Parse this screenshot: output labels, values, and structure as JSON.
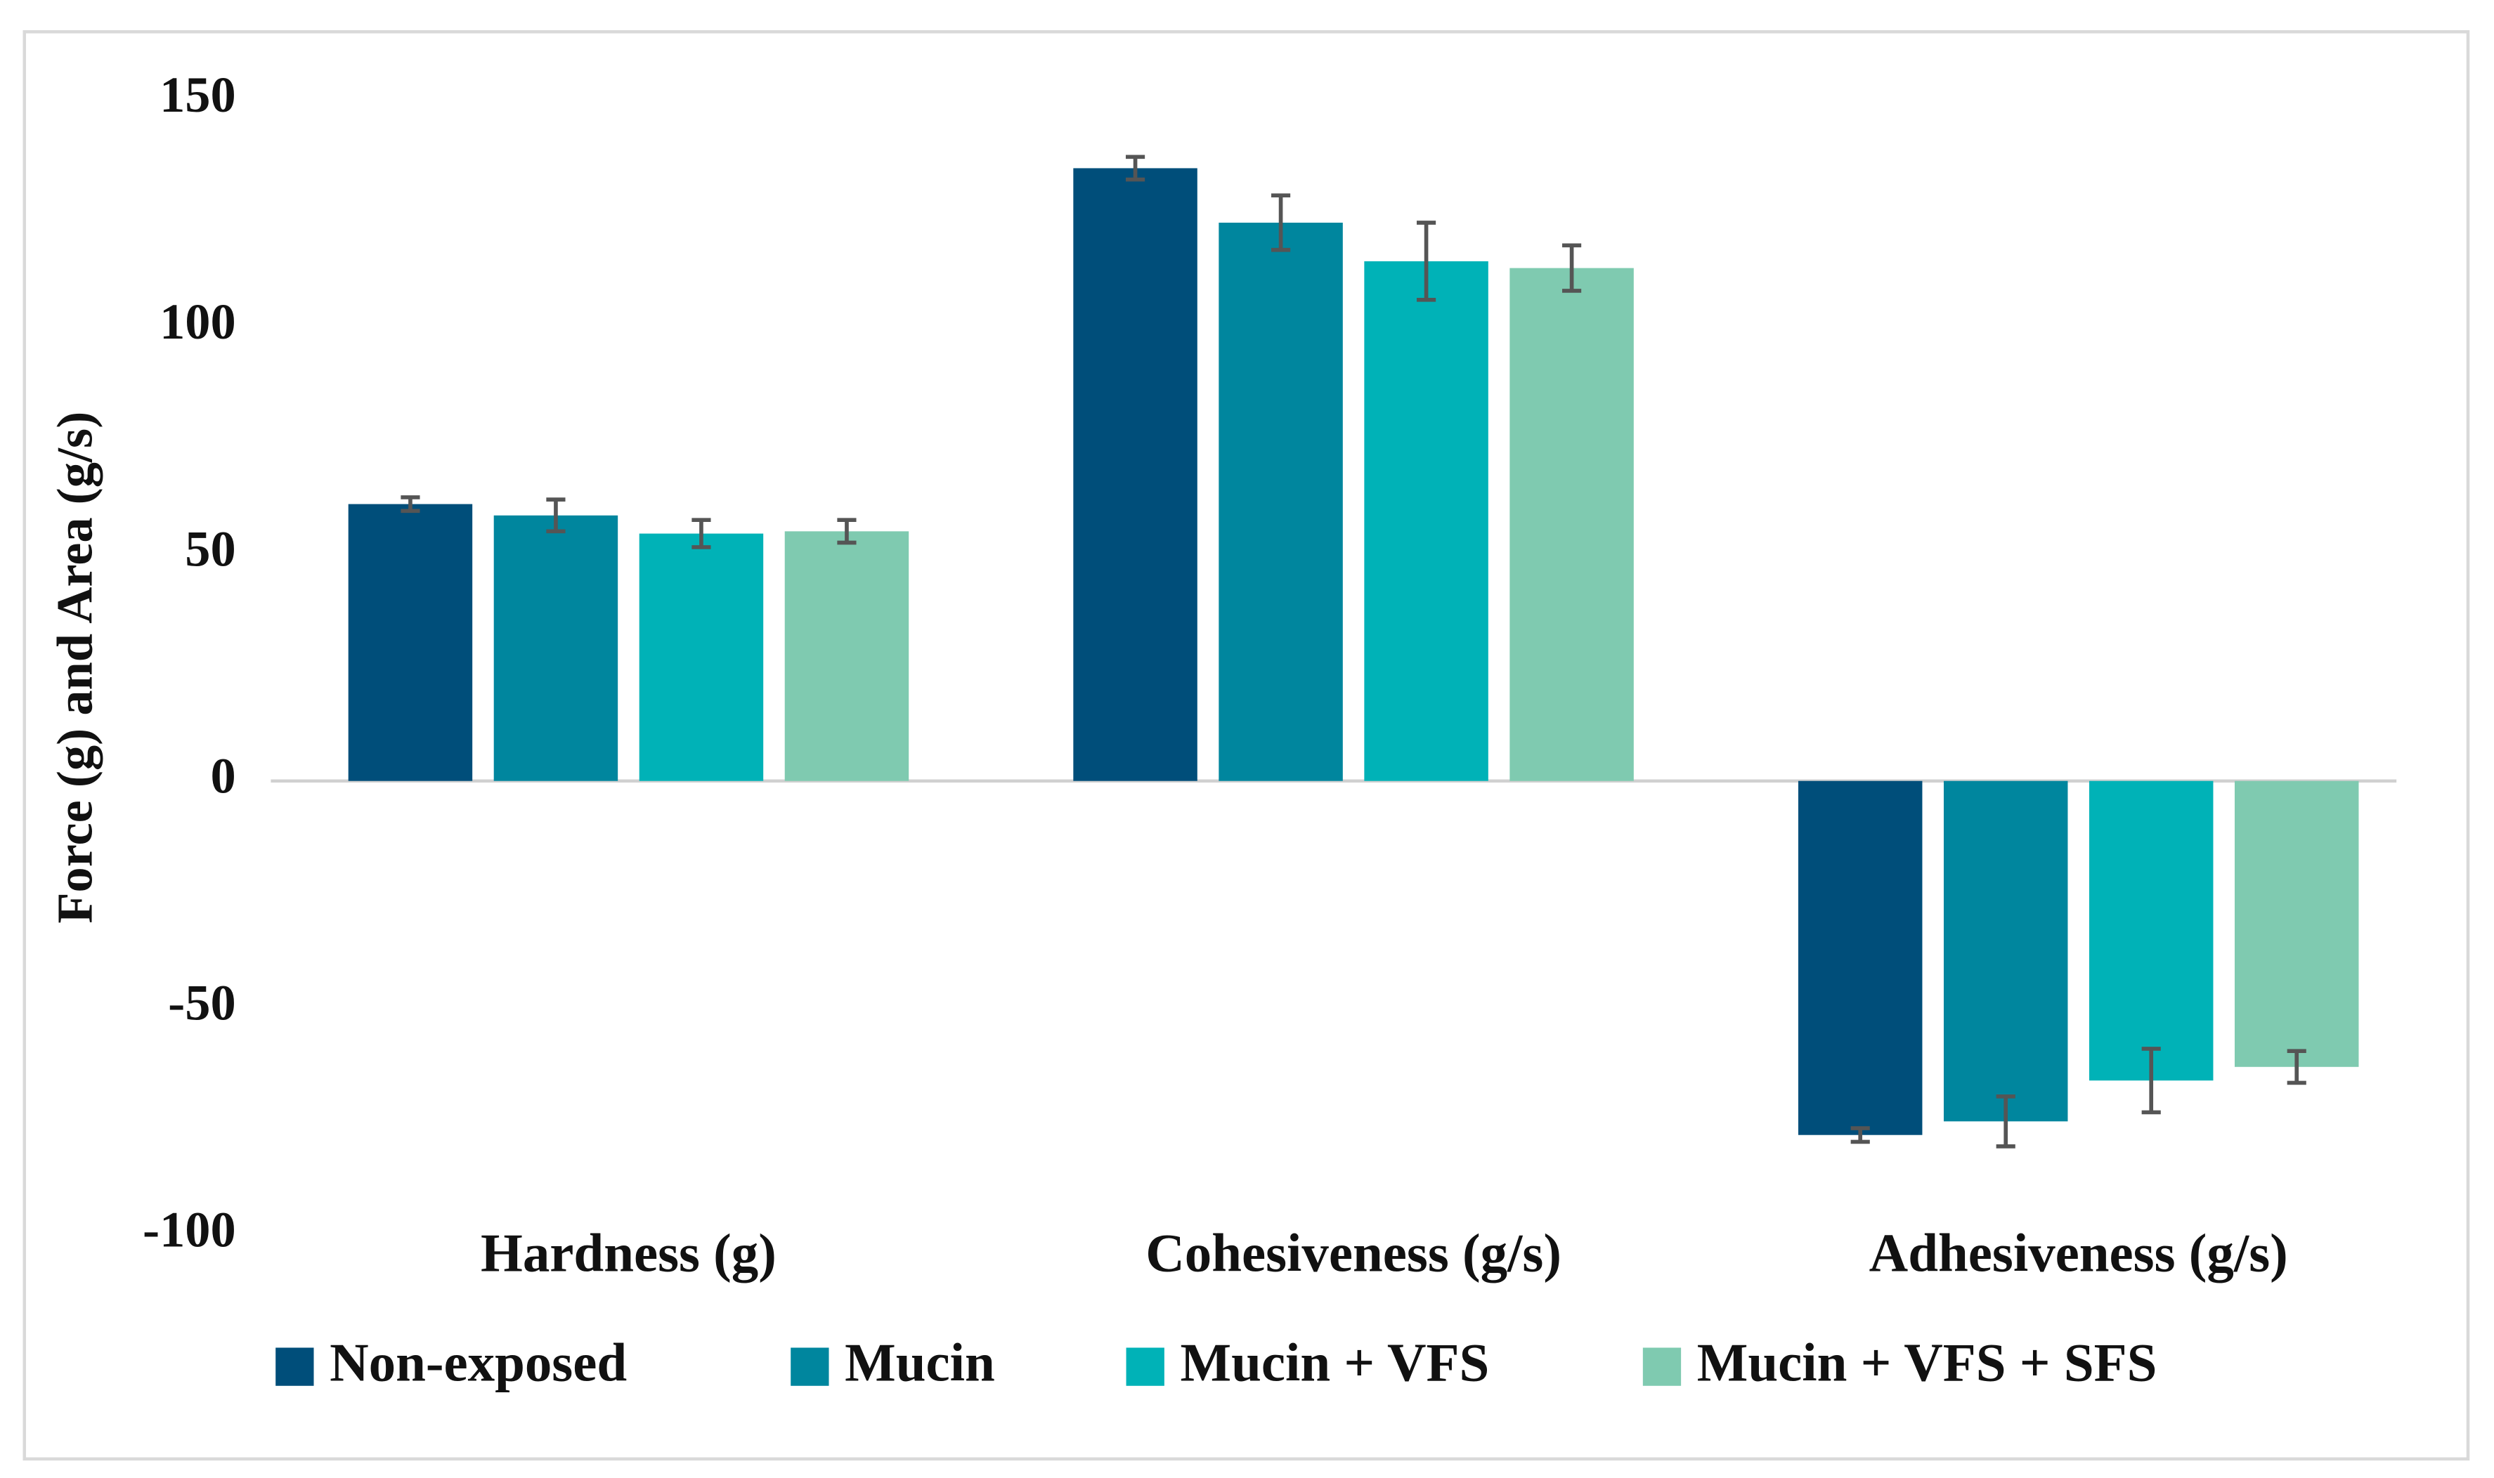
{
  "chart_data": {
    "type": "bar",
    "y_label": "Force (g) and Area (g/s)",
    "categories": [
      "Hardness (g)",
      "Cohesiveness (g/s)",
      "Adhesiveness (g/s)"
    ],
    "series": [
      {
        "name": "Non-exposed",
        "color": "#004e7a",
        "values": [
          61,
          135,
          -78
        ],
        "errors": [
          1.5,
          2.5,
          1.5
        ]
      },
      {
        "name": "Mucin",
        "color": "#00869e",
        "values": [
          58.5,
          123,
          -75
        ],
        "errors": [
          3.5,
          6,
          5.5
        ]
      },
      {
        "name": "Mucin + VFS",
        "color": "#00b2b7",
        "values": [
          54.5,
          114.5,
          -66
        ],
        "errors": [
          3,
          8.5,
          7
        ]
      },
      {
        "name": "Mucin + VFS + SFS",
        "color": "#7fcab0",
        "values": [
          55,
          113,
          -63
        ],
        "errors": [
          2.5,
          5,
          3.5
        ]
      }
    ],
    "ylim": [
      -100,
      150
    ],
    "yticks": [
      -100,
      -50,
      0,
      50,
      100,
      150
    ],
    "legend": "bottom"
  }
}
